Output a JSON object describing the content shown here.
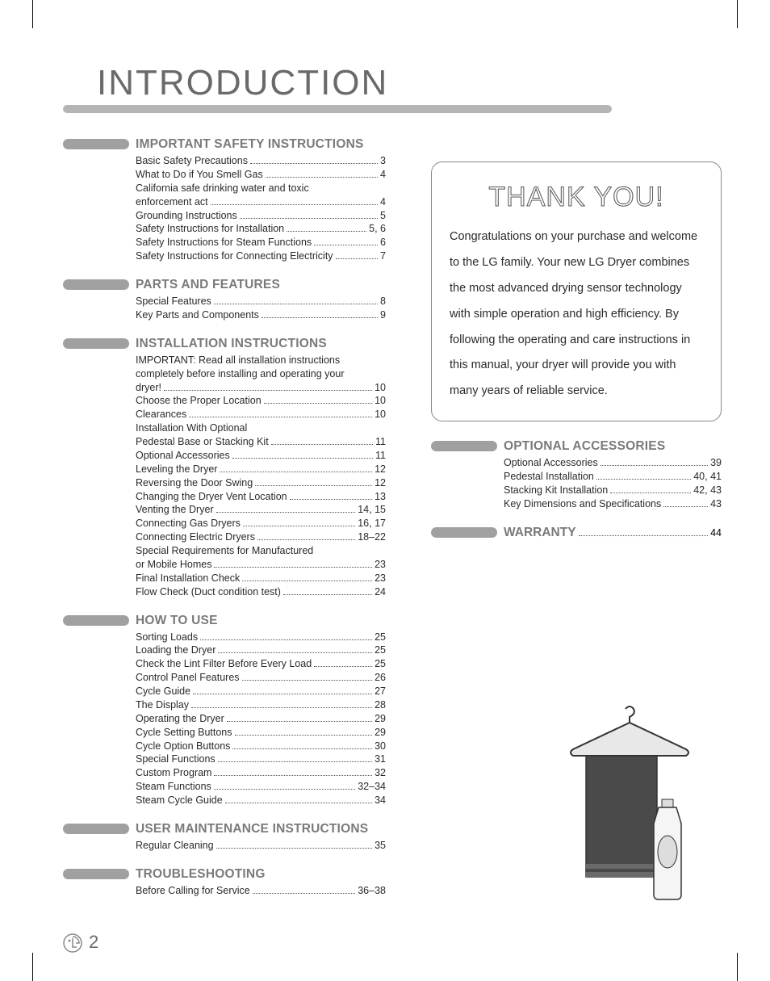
{
  "page": {
    "title": "INTRODUCTION",
    "number": "2"
  },
  "colors": {
    "section_title": "#7a7a7a",
    "pill": "#a0a0a0",
    "underline": "#b5b5b5",
    "body_text": "#2a2a2a",
    "title_outline": "#6a6a6a"
  },
  "thank_you": {
    "title": "THANK YOU!",
    "body": "Congratulations on your purchase and welcome to the LG family. Your new LG Dryer combines the most advanced drying sensor technology with simple operation and high efficiency. By following the operating and care instructions in this manual, your dryer will provide you with many years of reliable service."
  },
  "sections_left": [
    {
      "title": "IMPORTANT SAFETY INSTRUCTIONS",
      "items": [
        {
          "label": "Basic Safety Precautions",
          "page": "3"
        },
        {
          "label": "What to Do if You Smell Gas",
          "page": "4"
        },
        {
          "label": "California safe drinking water and toxic",
          "cont": "enforcement act",
          "page": "4"
        },
        {
          "label": "Grounding Instructions",
          "page": "5"
        },
        {
          "label": "Safety Instructions for Installation",
          "page": "5, 6"
        },
        {
          "label": "Safety Instructions for Steam Functions",
          "page": "6"
        },
        {
          "label": "Safety Instructions for Connecting Electricity",
          "page": "7"
        }
      ]
    },
    {
      "title": "PARTS AND FEATURES",
      "items": [
        {
          "label": "Special Features",
          "page": "8"
        },
        {
          "label": "Key Parts and Components",
          "page": "9"
        }
      ]
    },
    {
      "title": "INSTALLATION INSTRUCTIONS",
      "items": [
        {
          "label": "IMPORTANT: Read all installation instructions",
          "cont_only": true
        },
        {
          "label": "completely before installing and operating your",
          "cont_only": true
        },
        {
          "label": "dryer!",
          "page": "10"
        },
        {
          "label": "Choose the Proper Location",
          "page": "10"
        },
        {
          "label": "Clearances",
          "page": "10"
        },
        {
          "label": "Installation With Optional",
          "cont_only": true
        },
        {
          "label": "Pedestal Base or Stacking Kit",
          "page": "11"
        },
        {
          "label": "Optional Accessories",
          "page": "11"
        },
        {
          "label": "Leveling the Dryer",
          "page": "12"
        },
        {
          "label": "Reversing the Door Swing",
          "page": "12"
        },
        {
          "label": "Changing the Dryer Vent Location",
          "page": "13"
        },
        {
          "label": "Venting the Dryer",
          "page": "14, 15"
        },
        {
          "label": "Connecting Gas Dryers",
          "page": "16, 17"
        },
        {
          "label": "Connecting Electric Dryers",
          "page": "18–22"
        },
        {
          "label": "Special Requirements for Manufactured",
          "cont_only": true
        },
        {
          "label": "or Mobile Homes",
          "page": "23"
        },
        {
          "label": "Final Installation Check",
          "page": "23"
        },
        {
          "label": "Flow Check (Duct condition test)",
          "page": "24"
        }
      ]
    },
    {
      "title": "HOW TO USE",
      "items": [
        {
          "label": "Sorting Loads",
          "page": "25"
        },
        {
          "label": "Loading the Dryer",
          "page": "25"
        },
        {
          "label": "Check the Lint Filter Before Every Load",
          "page": "25"
        },
        {
          "label": "Control Panel Features",
          "page": "26"
        },
        {
          "label": "Cycle Guide",
          "page": "27"
        },
        {
          "label": "The Display",
          "page": "28"
        },
        {
          "label": "Operating the Dryer",
          "page": "29"
        },
        {
          "label": "Cycle Setting Buttons",
          "page": "29"
        },
        {
          "label": "Cycle Option Buttons",
          "page": "30"
        },
        {
          "label": "Special Functions",
          "page": "31"
        },
        {
          "label": "Custom Program",
          "page": "32"
        },
        {
          "label": "Steam Functions",
          "page": "32–34"
        },
        {
          "label": "Steam Cycle Guide",
          "page": "34"
        }
      ]
    },
    {
      "title": "USER MAINTENANCE INSTRUCTIONS",
      "items": [
        {
          "label": "Regular Cleaning",
          "page": "35"
        }
      ]
    },
    {
      "title": "TROUBLESHOOTING",
      "items": [
        {
          "label": "Before Calling for Service",
          "page": "36–38"
        }
      ]
    }
  ],
  "sections_right": [
    {
      "title": "OPTIONAL ACCESSORIES",
      "items": [
        {
          "label": "Optional Accessories",
          "page": "39"
        },
        {
          "label": "Pedestal Installation",
          "page": "40, 41"
        },
        {
          "label": "Stacking Kit Installation",
          "page": "42, 43"
        },
        {
          "label": "Key Dimensions and Specifications",
          "page": "43"
        }
      ]
    }
  ],
  "warranty": {
    "title": "WARRANTY",
    "page": "44"
  }
}
